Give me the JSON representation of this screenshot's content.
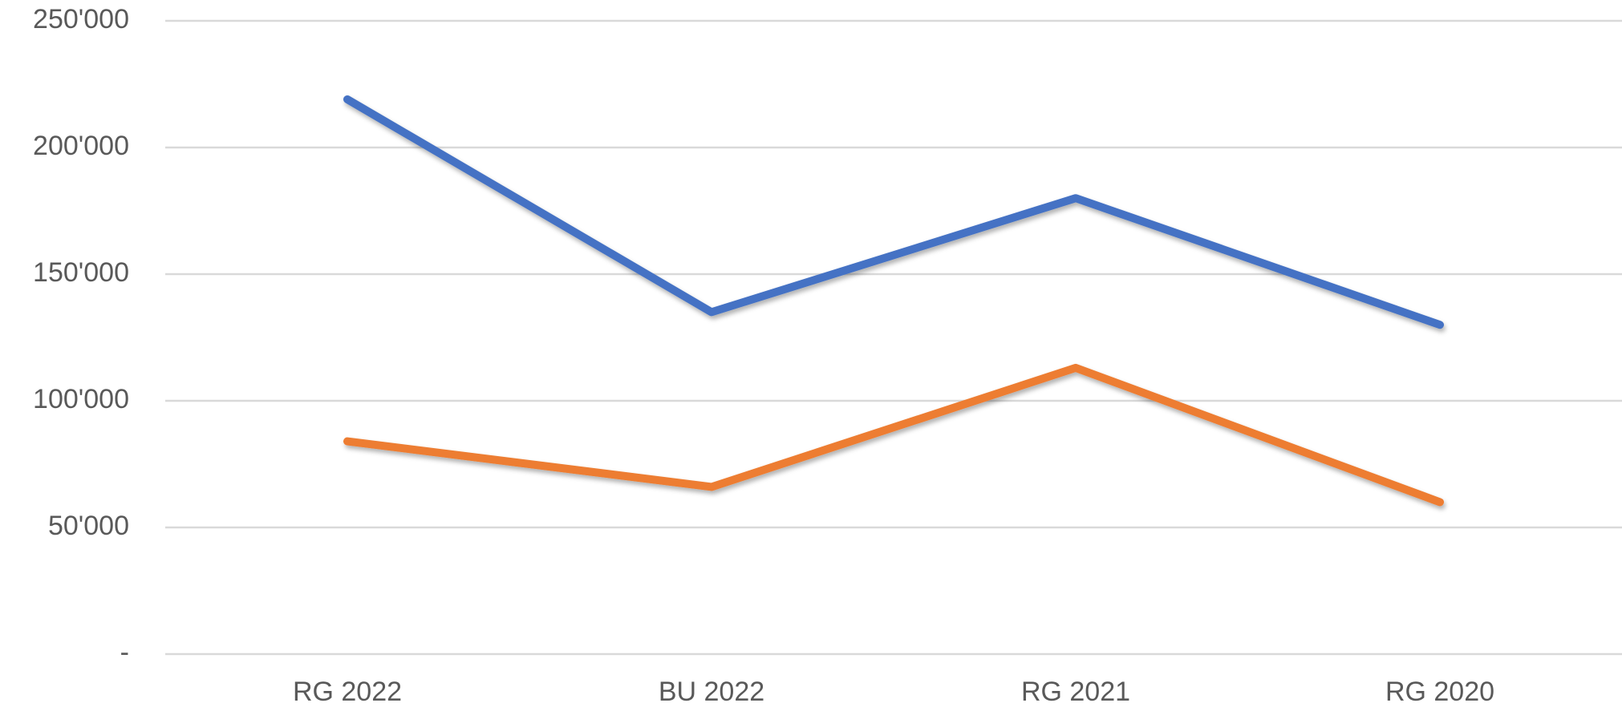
{
  "chart_data": {
    "type": "line",
    "categories": [
      "RG 2022",
      "BU 2022",
      "RG 2021",
      "RG 2020"
    ],
    "series": [
      {
        "color": "#4472c4",
        "values": [
          219000,
          135000,
          180000,
          130000
        ]
      },
      {
        "color": "#ed7d31",
        "values": [
          84000,
          66000,
          113000,
          60000
        ]
      }
    ],
    "ylim": [
      0,
      250000
    ],
    "yticks": [
      {
        "value": 0,
        "label": "-"
      },
      {
        "value": 50000,
        "label": "50'000"
      },
      {
        "value": 100000,
        "label": "100'000"
      },
      {
        "value": 150000,
        "label": "150'000"
      },
      {
        "value": 200000,
        "label": "200'000"
      },
      {
        "value": 250000,
        "label": "250'000"
      }
    ],
    "grid": true
  }
}
